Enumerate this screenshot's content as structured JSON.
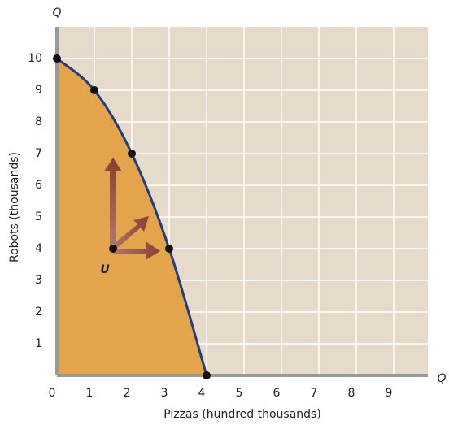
{
  "chart_data": {
    "type": "line",
    "x_label": "Pizzas (hundred thousands)",
    "y_label": "Robots (thousands)",
    "x_axis_letter": "Q",
    "y_axis_letter": "Q",
    "x": [
      0,
      1,
      2,
      3,
      4
    ],
    "series": [
      {
        "color": "#1f3f7f",
        "fill": "#e4a44c",
        "values": [
          10,
          9,
          7,
          4,
          0
        ]
      }
    ],
    "point_u": {
      "label": "U",
      "x": 1.5,
      "y": 4
    },
    "xlim": [
      0,
      10
    ],
    "ylim": [
      0,
      11
    ],
    "xticks": [
      0,
      1,
      2,
      3,
      4,
      5,
      6,
      7,
      8,
      9
    ],
    "yticks": [
      1,
      2,
      3,
      4,
      5,
      6,
      7,
      8,
      9,
      10
    ],
    "grid": true
  }
}
